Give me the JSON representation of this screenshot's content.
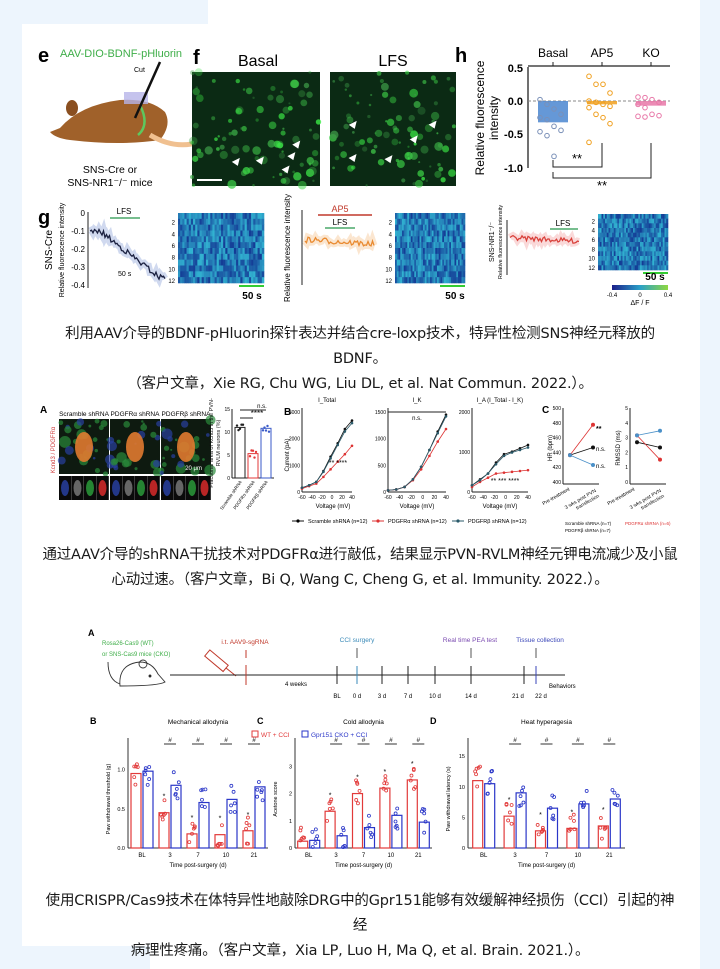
{
  "colors": {
    "page_bg": "#edf5fd",
    "card": "#ffffff",
    "wt": "#e23a3a",
    "cko": "#2a36c8",
    "basal": "#4a86d0",
    "ap5": "#f0a020",
    "ko": "#e878a8",
    "green_label": "#3fae49"
  },
  "figure1": {
    "e": {
      "letter": "e",
      "title": "AAV-DIO-BDNF-pHluorin",
      "cut": "Cut",
      "caption_line1": "SNS-Cre or",
      "caption_line2": "SNS-NR1⁻/⁻ mice"
    },
    "f": {
      "letter": "f",
      "left_title": "Basal",
      "right_title": "LFS"
    },
    "h": {
      "letter": "h",
      "categories": [
        "Basal",
        "AP5",
        "KO"
      ],
      "yticks": [
        "0.5",
        "0.0",
        "-0.5",
        "-1.0"
      ],
      "ylabel_line1": "Relative fluorescence",
      "ylabel_line2": "intensity",
      "sig1": "**",
      "sig2": "**",
      "chart_data": {
        "type": "bar",
        "categories": [
          "Basal",
          "AP5",
          "KO"
        ],
        "values": [
          -0.32,
          -0.05,
          -0.07
        ],
        "ylim": [
          -1.0,
          0.5
        ],
        "points": [
          [
            0.02,
            -0.05,
            -0.12,
            -0.2,
            -0.25,
            -0.28,
            -0.38,
            -0.44,
            -0.46,
            -0.52,
            -0.83
          ],
          [
            0.37,
            0.25,
            0.25,
            0.12,
            0.0,
            -0.02,
            -0.05,
            -0.08,
            -0.1,
            -0.2,
            -0.25,
            -0.34,
            -0.62
          ],
          [
            0.06,
            0.05,
            0.02,
            -0.02,
            -0.05,
            -0.1,
            -0.2,
            -0.22,
            -0.23,
            -0.24
          ]
        ]
      }
    },
    "g": {
      "letter": "g",
      "p1": {
        "label": "SNS-Cre",
        "ylabel": "Relative fluorescence intensity",
        "stim": "LFS",
        "scale": "50 s",
        "yticks": [
          "0",
          "-0.1",
          "-0.2",
          "-0.3",
          "-0.4"
        ],
        "heat_scale": "50 s",
        "rows": [
          "2",
          "4",
          "6",
          "8",
          "10",
          "12"
        ]
      },
      "p2": {
        "ylabel": "Relative fluorescence intensity",
        "drug": "AP5",
        "stim": "LFS",
        "heat_scale": "50 s",
        "rows": [
          "2",
          "4",
          "6",
          "8",
          "10",
          "12"
        ]
      },
      "p3": {
        "label": "SNS-NR1⁻/⁻",
        "ylabel": "Relative fluorescence intensity",
        "stim": "LFS",
        "heat_scale": "50 s",
        "rows": [
          "2",
          "4",
          "6",
          "8",
          "10",
          "12"
        ],
        "colorbar_ticks": [
          "-0.4",
          "0",
          "0.4"
        ],
        "colorbar_label": "ΔF / F"
      }
    }
  },
  "caption1": {
    "line1": "利用AAV介导的BDNF-pHluorin探针表达并结合cre-loxp技术，特异性检测SNS神经元释放的BDNF。",
    "line2": "（客户文章，Xie RG, Chu WG, Liu DL, et al. Nat Commun. 2022.）。"
  },
  "figure2": {
    "A": {
      "letter": "A",
      "columns": [
        "Scramble shRNA",
        "PDGFRα shRNA",
        "PDGFRβ shRNA"
      ],
      "scale": "20 μm",
      "side_label": "Kcnd3 / PDGFRα",
      "bar_ylabel": "Fractional area of Kcnd3 in the PVN-RVLM neurons (%)",
      "bar_yticks": [
        "15",
        "10",
        "5",
        "0"
      ],
      "bar_cats": [
        "Scramble shRNA",
        "PDGFRα shRNA",
        "PDGFRβ shRNA"
      ],
      "ns": "n.s.",
      "sig": "****",
      "bar_values": [
        11,
        5.3,
        10.8
      ]
    },
    "B": {
      "letter": "B",
      "plots": [
        {
          "title": "I_Total",
          "yticks": [
            "3000",
            "2000",
            "1000",
            "0"
          ]
        },
        {
          "title": "I_K",
          "yticks": [
            "1500",
            "1000",
            "500",
            "0"
          ],
          "ns": "n.s."
        },
        {
          "title": "I_A (I_Total - I_K)",
          "yticks": [
            "2000",
            "1000",
            "0"
          ]
        }
      ],
      "ylabel": "Current (pA)",
      "xlabel": "Voltage (mV)",
      "xticks": [
        "-60",
        "-40",
        "-20",
        "0",
        "20",
        "40"
      ],
      "legend": [
        "Scramble shRNA (n=12)",
        "PDGFRα shRNA (n=12)",
        "PDGFRβ shRNA (n=12)"
      ]
    },
    "C": {
      "letter": "C",
      "hr_ylabel": "HR (bpm)",
      "hr_yticks": [
        "500",
        "480",
        "460",
        "440",
        "420",
        "400"
      ],
      "rmssd_ylabel": "RMSSD (ms)",
      "rmssd_yticks": [
        "5",
        "4",
        "3",
        "2",
        "1",
        "0"
      ],
      "xcats": [
        "Pre-treatment",
        "3 wks post PVN transfection"
      ],
      "marks": [
        "**",
        "n.s.",
        "n.s."
      ],
      "legend": [
        "Scramble shRNA (n=7)",
        "PDGFRα shRNA (n=6)",
        "PDGFRβ shRNA (n=7)"
      ]
    }
  },
  "caption2": {
    "line1": "通过AAV介导的shRNA干扰技术对PDGFRα进行敲低，结果显示PVN-RVLM神经元钾电流减少及小鼠",
    "line2": "心动过速。（客户文章，Bi Q, Wang C, Cheng G, et al. Immunity. 2022.）。"
  },
  "figure3": {
    "A": {
      "letter": "A",
      "mice_line1": "Rosa26-Cas9 (WT)",
      "mice_line2": "or SNS-Cas9 mice (CKO)",
      "injection": "i.t. AAV9-sgRNA",
      "cci": "CCI surgery",
      "pea": "Real time PEA test",
      "tissue": "Tissue collection",
      "weeks": "4 weeks",
      "behaviors": "Behaviors",
      "ticks": [
        "BL",
        "0 d",
        "3 d",
        "7 d",
        "10 d",
        "14 d",
        "21 d",
        "22 d"
      ]
    },
    "legend": [
      "WT + CCI",
      "Gpr151 CKO + CCI"
    ],
    "charts": [
      {
        "letter": "B",
        "title": "Mechanical allodynia",
        "ylabel": "Paw withdrawal threshold (g)",
        "yticks": [
          "0.0",
          "0.5",
          "1.0"
        ],
        "ymax": 1.25,
        "tickvals": [
          0,
          0.5,
          1.0
        ],
        "xlabel": "Time post-surgery (d)",
        "categories": [
          "BL",
          "3",
          "7",
          "10",
          "21"
        ],
        "wt": [
          0.95,
          0.45,
          0.18,
          0.17,
          0.22
        ],
        "cko": [
          0.98,
          0.8,
          0.58,
          0.62,
          0.78
        ],
        "sig": [
          "#",
          "#",
          "#",
          "#"
        ],
        "star": [
          "*",
          "*",
          "*",
          "*"
        ]
      },
      {
        "letter": "C",
        "title": "Cold allodynia",
        "ylabel": "Acetone score",
        "yticks": [
          "0",
          "1",
          "2",
          "3"
        ],
        "ymax": 3.6,
        "tickvals": [
          0,
          1,
          2,
          3
        ],
        "xlabel": "Time post-surgery (d)",
        "categories": [
          "BL",
          "3",
          "7",
          "10",
          "21"
        ],
        "wt": [
          0.25,
          1.35,
          2.0,
          2.2,
          2.5
        ],
        "cko": [
          0.28,
          0.45,
          0.75,
          1.2,
          0.95
        ],
        "sig": [
          "#",
          "#",
          "#",
          "#"
        ],
        "star": [
          "*",
          "*",
          "*",
          "*"
        ]
      },
      {
        "letter": "D",
        "title": "Heat hyperagesia",
        "ylabel": "Paw withdrawal latency (s)",
        "yticks": [
          "0",
          "5",
          "10",
          "15"
        ],
        "ymax": 16,
        "tickvals": [
          0,
          5,
          10,
          15
        ],
        "xlabel": "Time post-surgery (d)",
        "categories": [
          "BL",
          "3",
          "7",
          "10",
          "21"
        ],
        "wt": [
          11,
          5.2,
          2.8,
          3.2,
          3.6
        ],
        "cko": [
          10.5,
          9,
          6.5,
          7.2,
          8
        ],
        "sig": [
          "#",
          "#",
          "#",
          "#"
        ],
        "star": [
          "*",
          "*",
          "*",
          "*"
        ]
      }
    ]
  },
  "caption3": {
    "line1": "使用CRISPR/Cas9技术在体特异性地敲除DRG中的Gpr151能够有效缓解神经损伤（CCI）引起的神经",
    "line2": "病理性疼痛。（客户文章，Xia LP, Luo H, Ma Q, et al. Brain. 2021.）。"
  }
}
